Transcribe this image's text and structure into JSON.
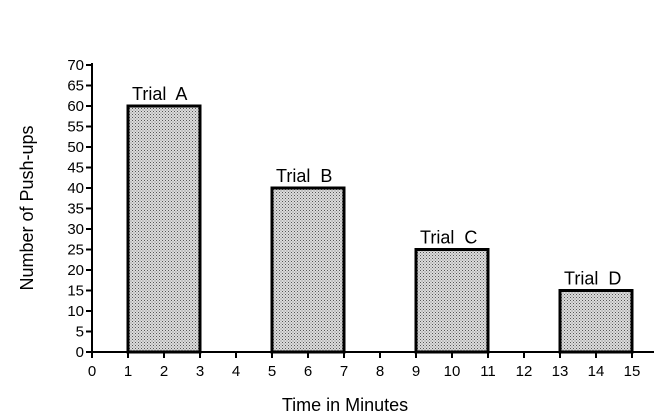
{
  "chart_data": {
    "type": "bar",
    "title": "",
    "xlabel": "Time in Minutes",
    "ylabel": "Number of Push-ups",
    "xlim": [
      0,
      15
    ],
    "ylim": [
      0,
      70
    ],
    "x_ticks": [
      0,
      1,
      2,
      3,
      4,
      5,
      6,
      7,
      8,
      9,
      10,
      11,
      12,
      13,
      14,
      15
    ],
    "y_ticks": [
      0,
      5,
      10,
      15,
      20,
      25,
      30,
      35,
      40,
      45,
      50,
      55,
      60,
      65,
      70
    ],
    "grid": false,
    "legend": "none",
    "bars": [
      {
        "label": "Trial  A",
        "x_start": 1,
        "x_end": 3,
        "value": 60
      },
      {
        "label": "Trial  B",
        "x_start": 5,
        "x_end": 7,
        "value": 40
      },
      {
        "label": "Trial  C",
        "x_start": 9,
        "x_end": 11,
        "value": 25
      },
      {
        "label": "Trial  D",
        "x_start": 13,
        "x_end": 15,
        "value": 15
      }
    ],
    "colors": {
      "bar_fill": "#d4d4d4",
      "bar_stroke": "#000000",
      "axis": "#000000"
    }
  }
}
